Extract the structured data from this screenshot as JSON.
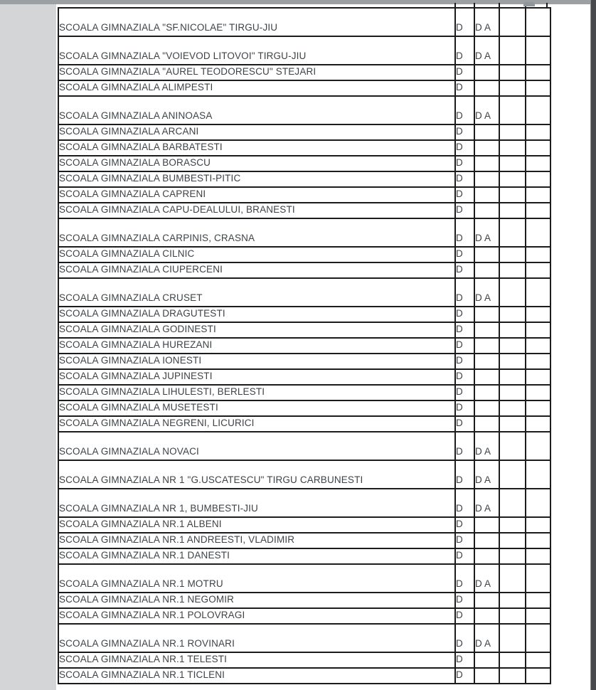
{
  "colors": {
    "page_background": "#ffffff",
    "left_gutter": "#d3d5d7",
    "top_gutter": "#9ca0a2",
    "right_edge_bar": "#47494d",
    "table_border": "#1c1c1c",
    "text": "#3e4347"
  },
  "table": {
    "rows": [
      {
        "name": "SCOALA GIMNAZIALA \"SF.NICOLAE\" TIRGU-JIU",
        "d": "D",
        "da": [
          "D",
          "A"
        ]
      },
      {
        "name": "SCOALA GIMNAZIALA \"VOIEVOD LITOVOI\" TIRGU-JIU",
        "d": "D",
        "da": [
          "D",
          "A"
        ]
      },
      {
        "name": "SCOALA GIMNAZIALA \"AUREL TEODORESCU\" STEJARI",
        "d": "D",
        "da": []
      },
      {
        "name": "SCOALA GIMNAZIALA ALIMPESTI",
        "d": "D",
        "da": []
      },
      {
        "name": "SCOALA GIMNAZIALA ANINOASA",
        "d": "D",
        "da": [
          "D",
          "A"
        ]
      },
      {
        "name": "SCOALA GIMNAZIALA ARCANI",
        "d": "D",
        "da": []
      },
      {
        "name": "SCOALA GIMNAZIALA BARBATESTI",
        "d": "D",
        "da": []
      },
      {
        "name": "SCOALA GIMNAZIALA BORASCU",
        "d": "D",
        "da": []
      },
      {
        "name": "SCOALA GIMNAZIALA BUMBESTI-PITIC",
        "d": "D",
        "da": []
      },
      {
        "name": "SCOALA GIMNAZIALA CAPRENI",
        "d": "D",
        "da": []
      },
      {
        "name": "SCOALA GIMNAZIALA CAPU-DEALULUI, BRANESTI",
        "d": "D",
        "da": []
      },
      {
        "name": "SCOALA GIMNAZIALA CARPINIS, CRASNA",
        "d": "D",
        "da": [
          "D",
          "A"
        ]
      },
      {
        "name": "SCOALA GIMNAZIALA CILNIC",
        "d": "D",
        "da": []
      },
      {
        "name": "SCOALA GIMNAZIALA CIUPERCENI",
        "d": "D",
        "da": []
      },
      {
        "name": "SCOALA GIMNAZIALA CRUSET",
        "d": "D",
        "da": [
          "D",
          "A"
        ]
      },
      {
        "name": "SCOALA GIMNAZIALA DRAGUTESTI",
        "d": "D",
        "da": []
      },
      {
        "name": "SCOALA GIMNAZIALA GODINESTI",
        "d": "D",
        "da": []
      },
      {
        "name": "SCOALA GIMNAZIALA HUREZANI",
        "d": "D",
        "da": []
      },
      {
        "name": "SCOALA GIMNAZIALA IONESTI",
        "d": "D",
        "da": []
      },
      {
        "name": "SCOALA GIMNAZIALA JUPINESTI",
        "d": "D",
        "da": []
      },
      {
        "name": "SCOALA GIMNAZIALA LIHULESTI, BERLESTI",
        "d": "D",
        "da": []
      },
      {
        "name": "SCOALA GIMNAZIALA MUSETESTI",
        "d": "D",
        "da": []
      },
      {
        "name": "SCOALA GIMNAZIALA NEGRENI, LICURICI",
        "d": "D",
        "da": []
      },
      {
        "name": "SCOALA GIMNAZIALA NOVACI",
        "d": "D",
        "da": [
          "D",
          "A"
        ]
      },
      {
        "name": "SCOALA GIMNAZIALA NR 1 \"G.USCATESCU\" TIRGU CARBUNESTI",
        "d": "D",
        "da": [
          "D",
          "A"
        ]
      },
      {
        "name": "SCOALA GIMNAZIALA NR 1, BUMBESTI-JIU",
        "d": "D",
        "da": [
          "D",
          "A"
        ]
      },
      {
        "name": "SCOALA GIMNAZIALA NR.1 ALBENI",
        "d": "D",
        "da": []
      },
      {
        "name": "SCOALA GIMNAZIALA NR.1 ANDREESTI, VLADIMIR",
        "d": "D",
        "da": []
      },
      {
        "name": "SCOALA GIMNAZIALA NR.1 DANESTI",
        "d": "D",
        "da": []
      },
      {
        "name": "SCOALA GIMNAZIALA NR.1 MOTRU",
        "d": "D",
        "da": [
          "D",
          "A"
        ]
      },
      {
        "name": "SCOALA GIMNAZIALA NR.1 NEGOMIR",
        "d": "D",
        "da": []
      },
      {
        "name": "SCOALA GIMNAZIALA NR.1 POLOVRAGI",
        "d": "D",
        "da": []
      },
      {
        "name": "SCOALA GIMNAZIALA NR.1 ROVINARI",
        "d": "D",
        "da": [
          "D",
          "A"
        ]
      },
      {
        "name": "SCOALA GIMNAZIALA NR.1 TELESTI",
        "d": "D",
        "da": []
      },
      {
        "name": "SCOALA GIMNAZIALA NR.1 TICLENI",
        "d": "D",
        "da": []
      }
    ]
  }
}
